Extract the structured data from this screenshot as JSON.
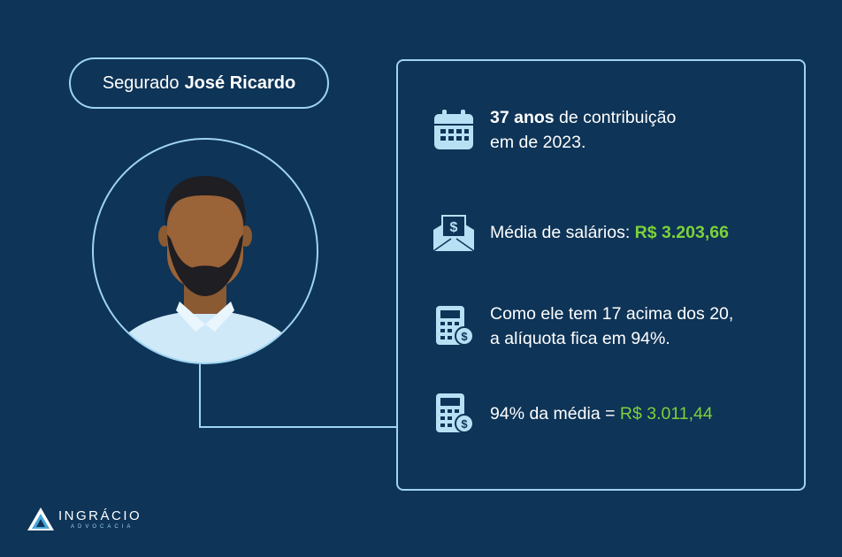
{
  "header": {
    "prefix": "Segurado",
    "name": "José Ricardo"
  },
  "items": [
    {
      "icon": "calendar-icon",
      "highlight": "37 anos",
      "text_a": " de contribuição",
      "text_b": "em de 2023."
    },
    {
      "icon": "salary-envelope-icon",
      "label": "Média de salários: ",
      "value": "R$ 3.203,66"
    },
    {
      "icon": "calculator-icon",
      "line1": "Como ele tem 17 acima dos 20,",
      "line2": "a alíquota fica em 94%."
    },
    {
      "icon": "calculator-icon",
      "label": "94% da média = ",
      "value": "R$ 3.011,44"
    }
  ],
  "logo": {
    "brand": "INGRÁCIO",
    "sub": "ADVOCACIA"
  },
  "colors": {
    "background": "#0e3457",
    "outline": "#9fd4f0",
    "accent_green": "#7dd13a"
  }
}
